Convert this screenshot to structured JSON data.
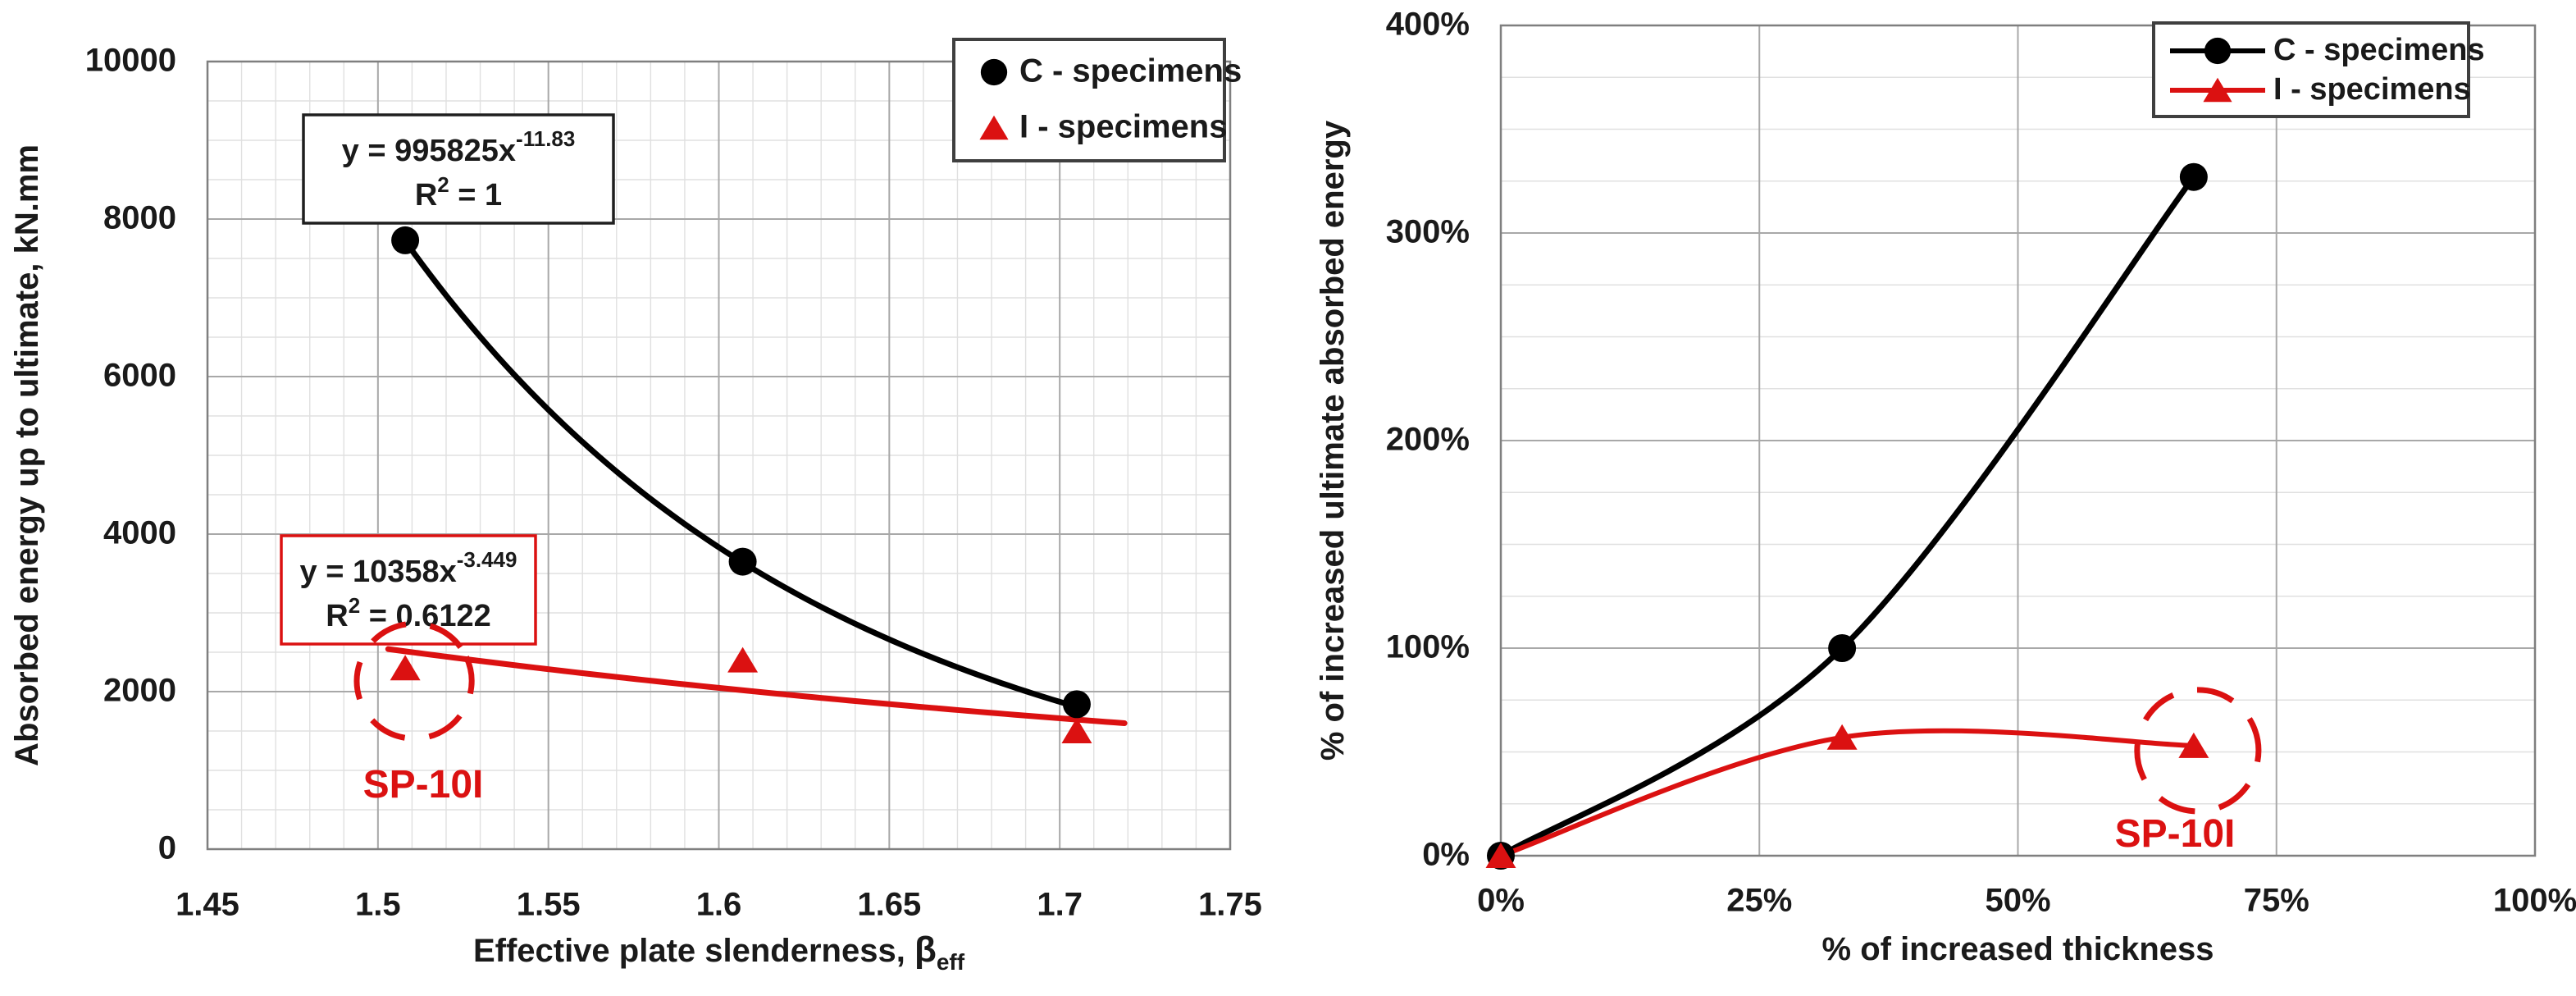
{
  "page": {
    "background": "#FFFFFF"
  },
  "colors": {
    "c_series": "#000000",
    "i_series": "#DB1111",
    "grid_minor": "#E0E0E0",
    "grid_major": "#A8A8A8",
    "frame": "#7F7F7F",
    "text": "#1A1A1A",
    "annotation_red": "#DB1111",
    "legend_border": "#3F3F3F",
    "background": "#FFFFFF"
  },
  "chart_data": [
    {
      "id": "energy-vs-slenderness",
      "type": "scatter",
      "title": "",
      "xlabel": {
        "text": "Effective plate slenderness, ",
        "symbol": "β",
        "subscript": "eff"
      },
      "ylabel": "Absorbed energy up to ultimate, kN.mm",
      "xlim": [
        1.45,
        1.75
      ],
      "ylim": [
        0,
        10000
      ],
      "x_ticks": [
        1.45,
        1.5,
        1.55,
        1.6,
        1.65,
        1.7,
        1.75
      ],
      "x_tick_labels": [
        "1.45",
        "1.5",
        "1.55",
        "1.6",
        "1.65",
        "1.7",
        "1.75"
      ],
      "y_ticks": [
        0,
        2000,
        4000,
        6000,
        8000,
        10000
      ],
      "y_tick_labels": [
        "0",
        "2000",
        "4000",
        "6000",
        "8000",
        "10000"
      ],
      "x_minor_step": 0.01,
      "y_minor_step": 500,
      "grid": "minor-both-directions",
      "legend": {
        "position": "top-right",
        "entries": [
          {
            "label": "C - specimens",
            "marker": "circle",
            "color": "#000000",
            "line": false
          },
          {
            "label": "I - specimens",
            "marker": "triangle",
            "color": "#DB1111",
            "line": false
          }
        ]
      },
      "series": [
        {
          "name": "C - specimens",
          "marker": "circle",
          "color": "#000000",
          "connect": false,
          "points": [
            {
              "x": 1.508,
              "y": 7730
            },
            {
              "x": 1.607,
              "y": 3650
            },
            {
              "x": 1.705,
              "y": 1840
            }
          ],
          "trendline": {
            "type": "power",
            "a": 995825,
            "b": -11.83,
            "x_start": 1.508,
            "x_end": 1.705
          },
          "equation": {
            "base": "y = 995825x",
            "exponent": "-11.83",
            "r2_base": "R",
            "r2_sup": "2",
            "r2_rest": " = 1"
          }
        },
        {
          "name": "I - specimens",
          "marker": "triangle",
          "color": "#DB1111",
          "connect": false,
          "points": [
            {
              "x": 1.508,
              "y": 2300
            },
            {
              "x": 1.607,
              "y": 2400
            },
            {
              "x": 1.705,
              "y": 1500
            }
          ],
          "trendline": {
            "type": "power",
            "a": 10358,
            "b": -3.449,
            "x_start": 1.503,
            "x_end": 1.719
          },
          "equation": {
            "base": "y = 10358x",
            "exponent": "-3.449",
            "r2_base": "R",
            "r2_sup": "2",
            "r2_rest": " = 0.6122"
          }
        }
      ],
      "annotation": {
        "label": "SP-10I",
        "series_index": 1,
        "point_index": 0
      }
    },
    {
      "id": "increase-vs-thickness",
      "type": "line",
      "title": "",
      "xlabel": "% of increased thickness",
      "ylabel": "% of increased ultimate absorbed energy",
      "xlim": [
        0,
        100
      ],
      "ylim": [
        0,
        400
      ],
      "x_ticks": [
        0,
        25,
        50,
        75,
        100
      ],
      "x_tick_labels": [
        "0%",
        "25%",
        "50%",
        "75%",
        "100%"
      ],
      "y_ticks": [
        0,
        100,
        200,
        300,
        400
      ],
      "y_tick_labels": [
        "0%",
        "100%",
        "200%",
        "300%",
        "400%"
      ],
      "y_minor_step": 25,
      "grid": "horizontal-minor-vertical-major",
      "legend": {
        "position": "top-right",
        "entries": [
          {
            "label": "C - specimens",
            "marker": "circle",
            "color": "#000000",
            "line": true
          },
          {
            "label": "I - specimens",
            "marker": "triangle",
            "color": "#DB1111",
            "line": true
          }
        ]
      },
      "series": [
        {
          "name": "C - specimens",
          "marker": "circle",
          "color": "#000000",
          "connect": true,
          "smooth": true,
          "points": [
            {
              "x": 0,
              "y": 0
            },
            {
              "x": 33,
              "y": 100
            },
            {
              "x": 67,
              "y": 327
            }
          ]
        },
        {
          "name": "I - specimens",
          "marker": "triangle",
          "color": "#DB1111",
          "connect": true,
          "smooth": true,
          "points": [
            {
              "x": 0,
              "y": 0
            },
            {
              "x": 33,
              "y": 57
            },
            {
              "x": 67,
              "y": 53
            }
          ]
        }
      ],
      "annotation": {
        "label": "SP-10I",
        "series_index": 1,
        "point_index": 2
      }
    }
  ]
}
